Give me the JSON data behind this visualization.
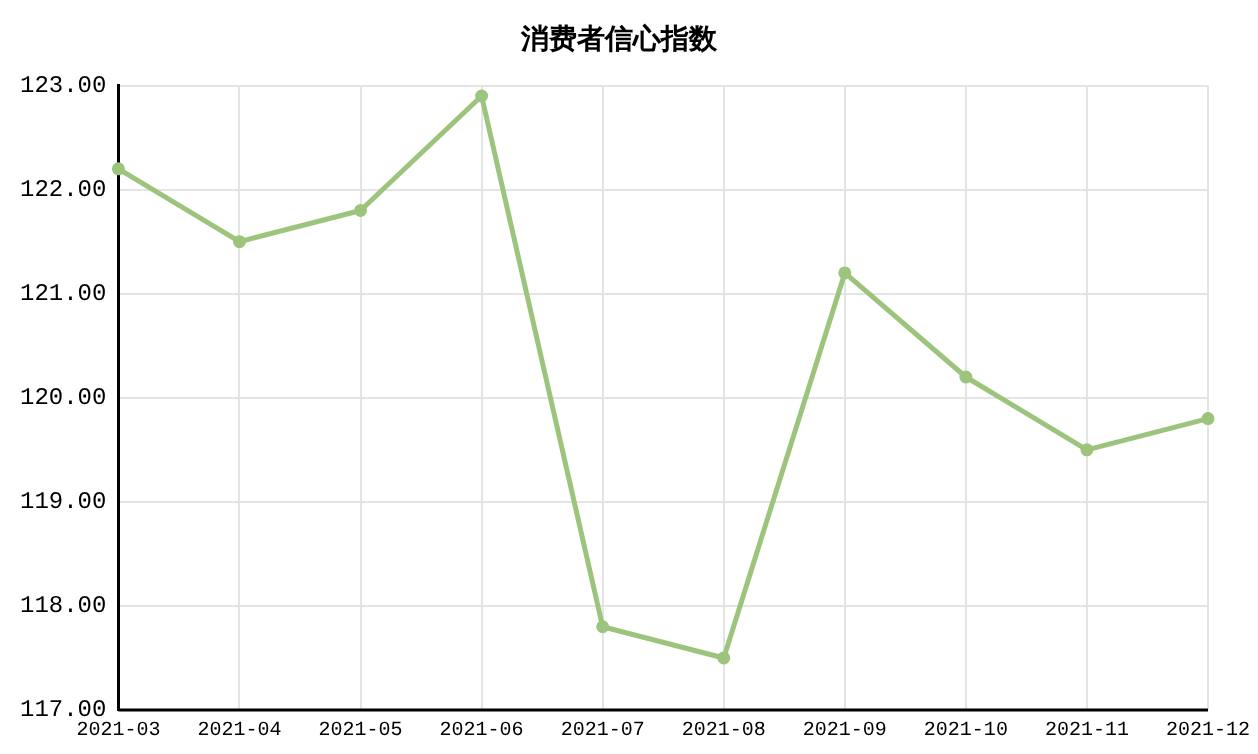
{
  "chart_data": {
    "type": "line",
    "title": "消费者信心指数",
    "categories": [
      "2021-03",
      "2021-04",
      "2021-05",
      "2021-06",
      "2021-07",
      "2021-08",
      "2021-09",
      "2021-10",
      "2021-11",
      "2021-12"
    ],
    "series": [
      {
        "color": "#9dc47c",
        "values": [
          122.2,
          121.5,
          121.8,
          122.9,
          117.8,
          117.5,
          121.2,
          120.2,
          119.5,
          119.8
        ]
      }
    ],
    "ylim": [
      117,
      123
    ],
    "yticks": [
      {
        "value": 117,
        "label": "117.00"
      },
      {
        "value": 118,
        "label": "118.00"
      },
      {
        "value": 119,
        "label": "119.00"
      },
      {
        "value": 120,
        "label": "120.00"
      },
      {
        "value": 121,
        "label": "121.00"
      },
      {
        "value": 122,
        "label": "122.00"
      },
      {
        "value": 123,
        "label": "123.00"
      }
    ],
    "grid": true,
    "legend": false,
    "marker": "circle",
    "line_style": "solid"
  }
}
